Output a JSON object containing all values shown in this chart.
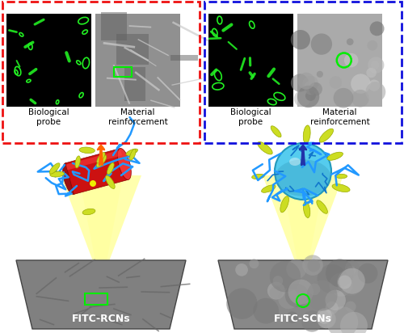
{
  "fig_width": 5.0,
  "fig_height": 4.12,
  "dpi": 100,
  "bg_color": "#ffffff",
  "left_label": "FITC-RCNs",
  "right_label": "FITC-SCNs",
  "left_box_color": "#ee1111",
  "right_box_color": "#1111dd",
  "bio_probe_label": "Biological\nprobe",
  "mat_reinf_label": "Material\nreinforcement",
  "arrow_left_color": "#ff6600",
  "arrow_right_color": "#2233aa",
  "beam_color": "#ffff88",
  "nanorod_color": "#cc1111",
  "nanosphere_color": "#44bbee",
  "fitc_color": "#ccdd22",
  "polymer_color": "#2299ff"
}
